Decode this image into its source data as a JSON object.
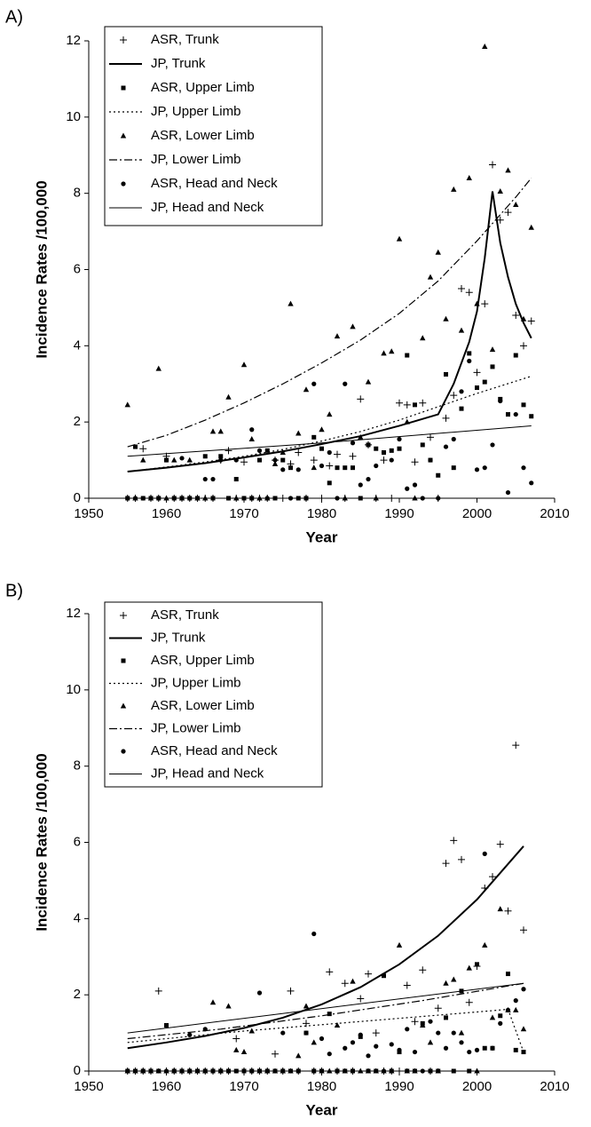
{
  "chart_data": [
    {
      "type": "scatter",
      "title": "A)",
      "xlabel": "Year",
      "ylabel": "Incidence Rates /100,000",
      "xlim": [
        1950,
        2010
      ],
      "ylim": [
        0,
        12
      ],
      "xticks": [
        1950,
        1960,
        1970,
        1980,
        1990,
        2000,
        2010
      ],
      "yticks": [
        0,
        2,
        4,
        6,
        8,
        10,
        12
      ],
      "grid": false,
      "legend": "top-left",
      "x": [
        1955,
        1956,
        1957,
        1958,
        1959,
        1960,
        1961,
        1962,
        1963,
        1964,
        1965,
        1966,
        1967,
        1968,
        1969,
        1970,
        1971,
        1972,
        1973,
        1974,
        1975,
        1976,
        1977,
        1978,
        1979,
        1980,
        1981,
        1982,
        1983,
        1984,
        1985,
        1986,
        1987,
        1988,
        1989,
        1990,
        1991,
        1992,
        1993,
        1994,
        1995,
        1996,
        1997,
        1998,
        1999,
        2000,
        2001,
        2002,
        2003,
        2004,
        2005,
        2006,
        2007
      ],
      "series": [
        {
          "name": "ASR, Trunk",
          "type": "scatter",
          "marker": "plus",
          "color": "#000000",
          "values": [
            0,
            0,
            1.3,
            0,
            0,
            1.1,
            0,
            0,
            0,
            0,
            0,
            0,
            1.0,
            1.25,
            0,
            0.95,
            0,
            0,
            0,
            1.0,
            0,
            0.9,
            1.2,
            0,
            1.0,
            0,
            0.85,
            1.15,
            0,
            1.1,
            2.6,
            1.4,
            0,
            1.0,
            0,
            2.5,
            2.45,
            0.95,
            2.5,
            1.6,
            0,
            2.1,
            2.7,
            5.5,
            5.4,
            3.3,
            5.1,
            8.75,
            7.3,
            7.5,
            4.8,
            4.0,
            4.65
          ]
        },
        {
          "name": "JP, Trunk",
          "type": "line",
          "dash": "solid",
          "width": 2,
          "color": "#000000",
          "x": [
            1955,
            1960,
            1965,
            1970,
            1975,
            1980,
            1985,
            1990,
            1995,
            1997,
            1999,
            2000,
            2001,
            2002,
            2003,
            2004,
            2005,
            2006,
            2007
          ],
          "values": [
            0.7,
            0.8,
            0.92,
            1.07,
            1.23,
            1.42,
            1.63,
            1.9,
            2.2,
            3.0,
            4.1,
            4.9,
            6.3,
            8.05,
            6.7,
            5.8,
            5.1,
            4.6,
            4.2
          ]
        },
        {
          "name": "ASR, Upper Limb",
          "type": "scatter",
          "marker": "square",
          "color": "#000000",
          "values": [
            0,
            1.35,
            0,
            0,
            0,
            1.0,
            0,
            0,
            0,
            0,
            1.1,
            0,
            1.1,
            0,
            0.5,
            0,
            0,
            1.0,
            1.25,
            0,
            1.0,
            0.8,
            0,
            0,
            1.6,
            1.3,
            0.4,
            0.8,
            0.8,
            0.8,
            0,
            1.4,
            1.3,
            1.2,
            1.25,
            1.3,
            3.75,
            2.45,
            1.4,
            1.0,
            0.6,
            3.25,
            0.8,
            2.35,
            3.8,
            2.9,
            3.05,
            3.45,
            2.6,
            2.2,
            3.75,
            2.45,
            2.15
          ]
        },
        {
          "name": "JP, Upper Limb",
          "type": "line",
          "dash": "dotted",
          "width": 1.2,
          "color": "#000000",
          "x": [
            1955,
            1960,
            1965,
            1970,
            1975,
            1980,
            1985,
            1990,
            1995,
            2000,
            2007
          ],
          "values": [
            0.7,
            0.82,
            0.95,
            1.1,
            1.28,
            1.5,
            1.75,
            2.05,
            2.4,
            2.75,
            3.2
          ]
        },
        {
          "name": "ASR, Lower Limb",
          "type": "scatter",
          "marker": "triangle",
          "color": "#000000",
          "values": [
            2.45,
            0,
            1.0,
            0,
            3.4,
            0,
            1.0,
            0,
            1.0,
            0,
            0,
            1.75,
            1.75,
            2.65,
            0,
            3.5,
            1.55,
            0,
            0,
            0.9,
            1.2,
            5.1,
            1.7,
            2.85,
            0.8,
            1.8,
            2.2,
            4.25,
            0,
            4.5,
            1.6,
            3.05,
            0,
            3.8,
            3.85,
            6.8,
            2.0,
            0,
            4.2,
            5.8,
            6.45,
            4.7,
            8.1,
            4.4,
            8.4,
            5.1,
            11.85,
            3.9,
            8.05,
            8.6,
            7.7,
            4.7,
            7.1
          ]
        },
        {
          "name": "JP, Lower Limb",
          "type": "line",
          "dash": "dashdot",
          "width": 1.2,
          "color": "#000000",
          "x": [
            1955,
            1960,
            1965,
            1970,
            1975,
            1980,
            1985,
            1990,
            1995,
            2000,
            2005,
            2007
          ],
          "values": [
            1.35,
            1.65,
            2.05,
            2.5,
            3.0,
            3.55,
            4.15,
            4.85,
            5.7,
            6.75,
            7.9,
            8.4
          ]
        },
        {
          "name": "ASR, Head and Neck",
          "type": "scatter",
          "marker": "circle",
          "color": "#000000",
          "values": [
            0,
            0,
            0,
            0,
            0,
            1.0,
            0,
            1.05,
            0,
            0,
            0.5,
            0.5,
            1.0,
            0,
            1.0,
            0,
            1.8,
            1.25,
            0,
            1.0,
            0.75,
            0,
            0.75,
            0,
            3.0,
            0.85,
            1.2,
            0,
            3.0,
            1.45,
            0.35,
            0.5,
            0.85,
            1.2,
            1.0,
            1.55,
            0.25,
            0.35,
            0,
            1.0,
            0,
            1.35,
            1.55,
            2.8,
            3.6,
            0.75,
            0.8,
            1.4,
            2.55,
            0.15,
            2.2,
            0.8,
            0.4
          ]
        },
        {
          "name": "JP, Head and Neck",
          "type": "line",
          "dash": "solid",
          "width": 1,
          "color": "#000000",
          "x": [
            1955,
            1980,
            2007
          ],
          "values": [
            1.1,
            1.45,
            1.9
          ]
        }
      ]
    },
    {
      "type": "scatter",
      "title": "B)",
      "xlabel": "Year",
      "ylabel": "Incidence Rates /100,000",
      "xlim": [
        1950,
        2010
      ],
      "ylim": [
        0,
        12
      ],
      "xticks": [
        1950,
        1960,
        1970,
        1980,
        1990,
        2000,
        2010
      ],
      "yticks": [
        0,
        2,
        4,
        6,
        8,
        10,
        12
      ],
      "grid": false,
      "legend": "top-left",
      "x": [
        1955,
        1956,
        1957,
        1958,
        1959,
        1960,
        1961,
        1962,
        1963,
        1964,
        1965,
        1966,
        1967,
        1968,
        1969,
        1970,
        1971,
        1972,
        1973,
        1974,
        1975,
        1976,
        1977,
        1978,
        1979,
        1980,
        1981,
        1982,
        1983,
        1984,
        1985,
        1986,
        1987,
        1988,
        1989,
        1990,
        1991,
        1992,
        1993,
        1994,
        1995,
        1996,
        1997,
        1998,
        1999,
        2000,
        2001,
        2002,
        2003,
        2004,
        2005,
        2006
      ],
      "series": [
        {
          "name": "ASR, Trunk",
          "type": "scatter",
          "marker": "plus",
          "color": "#000000",
          "values": [
            0,
            0,
            0,
            0,
            2.1,
            0,
            0,
            0,
            0,
            0,
            0,
            0,
            0,
            0,
            0.85,
            0,
            0,
            0,
            0,
            0.45,
            0,
            2.1,
            0,
            1.25,
            0,
            0,
            2.6,
            0,
            2.3,
            0,
            1.9,
            2.55,
            1.0,
            0,
            0,
            0,
            2.25,
            1.3,
            2.65,
            0,
            1.65,
            5.45,
            6.05,
            5.55,
            1.8,
            2.75,
            4.8,
            5.1,
            5.95,
            4.2,
            8.55,
            3.7
          ]
        },
        {
          "name": "JP, Trunk",
          "type": "line",
          "dash": "solid",
          "width": 2,
          "color": "#000000",
          "x": [
            1955,
            1960,
            1965,
            1970,
            1975,
            1980,
            1985,
            1990,
            1995,
            2000,
            2006
          ],
          "values": [
            0.6,
            0.75,
            0.92,
            1.13,
            1.4,
            1.75,
            2.2,
            2.8,
            3.55,
            4.5,
            5.9
          ]
        },
        {
          "name": "ASR, Upper Limb",
          "type": "scatter",
          "marker": "square",
          "color": "#000000",
          "values": [
            0,
            0,
            0,
            0,
            0,
            1.2,
            0,
            0,
            0,
            0,
            0,
            0,
            0,
            0,
            0,
            0,
            0,
            0,
            0,
            0,
            0,
            0,
            0,
            1.0,
            0,
            0,
            1.5,
            0,
            0,
            0,
            0.9,
            0,
            0,
            2.5,
            0,
            0.5,
            0,
            0,
            1.25,
            0,
            0,
            1.4,
            0,
            2.1,
            0,
            2.8,
            0.6,
            0.6,
            1.45,
            2.55,
            0.55,
            0.5
          ]
        },
        {
          "name": "JP, Upper Limb",
          "type": "line",
          "dash": "dotted",
          "width": 1.2,
          "color": "#000000",
          "x": [
            1955,
            1970,
            1985,
            2000,
            2004,
            2006
          ],
          "values": [
            0.75,
            1.05,
            1.3,
            1.55,
            1.62,
            0.5
          ]
        },
        {
          "name": "ASR, Lower Limb",
          "type": "scatter",
          "marker": "triangle",
          "color": "#000000",
          "values": [
            0,
            0,
            0,
            0,
            0,
            0,
            0,
            0,
            0,
            0,
            0,
            1.8,
            0,
            1.7,
            0.55,
            0.5,
            1.05,
            0,
            0,
            0,
            0,
            0,
            0.4,
            1.7,
            0.75,
            0,
            0,
            1.2,
            0,
            2.35,
            0,
            0,
            0,
            0,
            0,
            3.3,
            0,
            0,
            1.2,
            0.75,
            0,
            2.3,
            2.4,
            1.0,
            2.7,
            0,
            3.3,
            1.4,
            4.25,
            1.6,
            1.6,
            1.1
          ]
        },
        {
          "name": "JP, Lower Limb",
          "type": "line",
          "dash": "dashdot",
          "width": 1.2,
          "color": "#000000",
          "x": [
            1955,
            1967,
            1980,
            1993,
            2006
          ],
          "values": [
            0.85,
            1.1,
            1.45,
            1.85,
            2.3
          ]
        },
        {
          "name": "ASR, Head and Neck",
          "type": "scatter",
          "marker": "circle",
          "color": "#000000",
          "values": [
            0,
            0,
            0,
            0,
            0,
            0,
            0,
            0,
            0.95,
            0,
            1.1,
            0,
            0,
            0,
            0,
            0,
            0,
            2.05,
            0,
            0,
            1.0,
            0,
            0,
            1.0,
            3.6,
            0.85,
            0.45,
            0,
            0.6,
            0.75,
            0.95,
            0.4,
            0.65,
            0,
            0.7,
            0.55,
            1.1,
            0.5,
            0,
            1.3,
            1.0,
            0.6,
            1.0,
            0.75,
            0.5,
            0.55,
            5.7,
            0.6,
            1.25,
            1.6,
            1.85,
            2.15
          ]
        },
        {
          "name": "JP, Head and Neck",
          "type": "line",
          "dash": "solid",
          "width": 1,
          "color": "#000000",
          "x": [
            1955,
            2006
          ],
          "values": [
            1.0,
            2.3
          ]
        }
      ]
    }
  ]
}
